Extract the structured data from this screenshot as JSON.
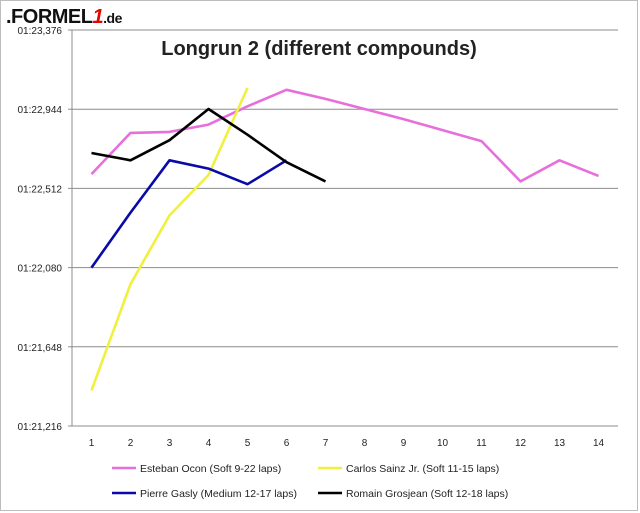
{
  "logo": {
    "prefix": ".FORMEL",
    "one": "1",
    "suffix": ".de"
  },
  "chart_data": {
    "type": "line",
    "title": "Longrun 2 (different compounds)",
    "xlabel": "",
    "ylabel": "",
    "x": [
      1,
      2,
      3,
      4,
      5,
      6,
      7,
      8,
      9,
      10,
      11,
      12,
      13,
      14
    ],
    "xlim": [
      0.5,
      14.5
    ],
    "ylim": [
      81.216,
      83.376
    ],
    "yticks": [
      81.216,
      81.648,
      82.08,
      82.512,
      82.944,
      83.376
    ],
    "ytick_labels": [
      "01:21,216",
      "01:21,648",
      "01:22,080",
      "01:22,512",
      "01:22,944",
      "01:23,376"
    ],
    "grid": "horizontal",
    "legend_position": "bottom",
    "series": [
      {
        "name": "Esteban Ocon (Soft 9-22 laps)",
        "color": "#e86fdb",
        "x": [
          1,
          2,
          3,
          4,
          5,
          6,
          7,
          8,
          9,
          10,
          11,
          12,
          13,
          14
        ],
        "values": [
          82.59,
          82.815,
          82.82,
          82.86,
          82.96,
          83.05,
          83.0,
          82.945,
          82.89,
          82.83,
          82.77,
          82.55,
          82.665,
          82.58
        ]
      },
      {
        "name": "Carlos Sainz Jr. (Soft 11-15 laps)",
        "color": "#f0f040",
        "x": [
          1,
          2,
          3,
          4,
          5
        ],
        "values": [
          81.41,
          81.99,
          82.365,
          82.585,
          83.06
        ]
      },
      {
        "name": "Pierre Gasly (Medium 12-17 laps)",
        "color": "#0a0aa8",
        "x": [
          1,
          2,
          3,
          4,
          5,
          6
        ],
        "values": [
          82.08,
          82.38,
          82.665,
          82.62,
          82.535,
          82.665
        ]
      },
      {
        "name": "Romain Grosjean (Soft 12-18 laps)",
        "color": "#000000",
        "x": [
          1,
          2,
          3,
          4,
          5,
          6,
          7
        ],
        "values": [
          82.705,
          82.665,
          82.775,
          82.945,
          82.805,
          82.655,
          82.55
        ]
      }
    ]
  }
}
